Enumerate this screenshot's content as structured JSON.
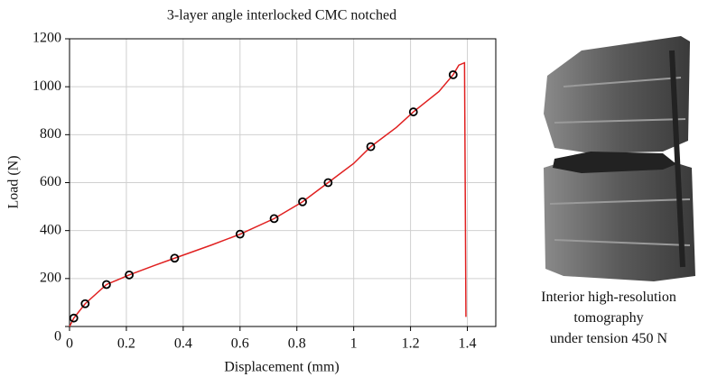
{
  "chart_data": {
    "type": "line",
    "title": "3-layer angle interlocked CMC notched",
    "x_label": "Displacement (mm)",
    "y_label": "Load (N)",
    "xlim": [
      0,
      1.5
    ],
    "ylim": [
      0,
      1200
    ],
    "xticks": [
      0,
      0.2,
      0.4,
      0.6,
      0.8,
      1,
      1.2,
      1.4
    ],
    "yticks": [
      0,
      200,
      400,
      600,
      800,
      1000,
      1200
    ],
    "grid": true,
    "series": [
      {
        "color": "#e02020",
        "marker": "none",
        "x": [
          0,
          0.015,
          0.055,
          0.13,
          0.21,
          0.3,
          0.37,
          0.5,
          0.6,
          0.72,
          0.82,
          0.91,
          1.0,
          1.06,
          1.15,
          1.21,
          1.3,
          1.35,
          1.37,
          1.39,
          1.395
        ],
        "values": [
          0,
          35,
          95,
          175,
          215,
          255,
          285,
          340,
          385,
          450,
          520,
          600,
          680,
          750,
          830,
          895,
          980,
          1050,
          1090,
          1100,
          40
        ]
      },
      {
        "color": "#000000",
        "marker": "circle",
        "x": [
          0.015,
          0.055,
          0.13,
          0.21,
          0.37,
          0.6,
          0.72,
          0.82,
          0.91,
          1.06,
          1.21,
          1.35
        ],
        "values": [
          35,
          95,
          175,
          215,
          285,
          385,
          450,
          520,
          600,
          750,
          895,
          1050
        ]
      }
    ]
  },
  "image_caption": [
    "Interior high-resolution",
    "tomography",
    "under tension 450 N"
  ]
}
